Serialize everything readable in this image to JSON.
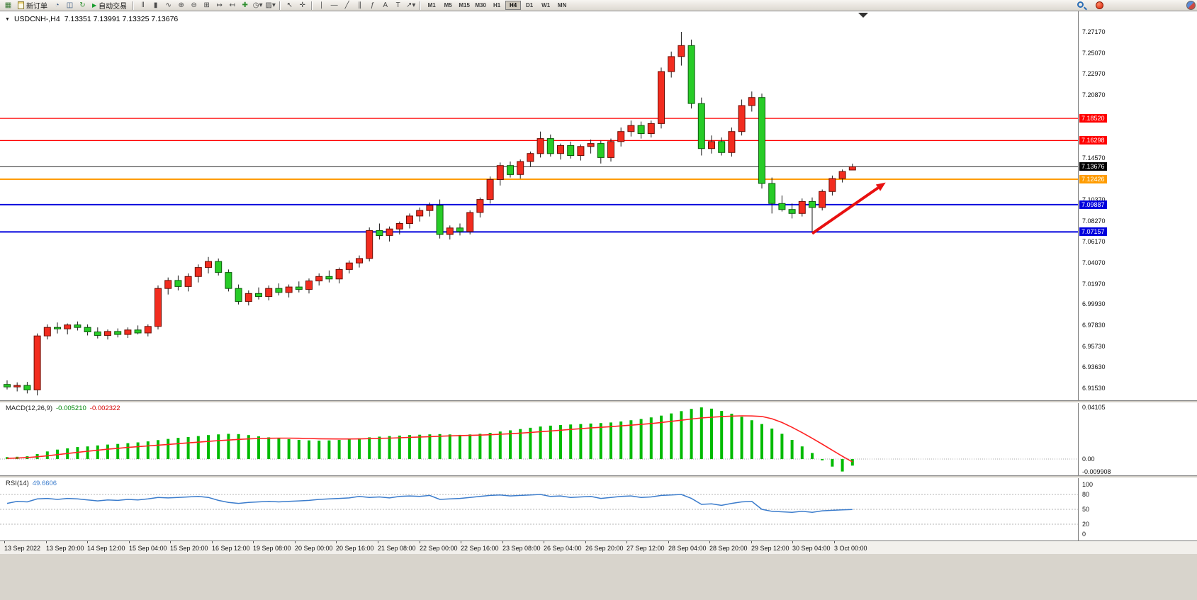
{
  "toolbar": {
    "new_order_label": "新订单",
    "autotrading_label": "自动交易",
    "autotrading_glyph": "▶",
    "icon_groups": {
      "g1": [
        {
          "name": "new-chart",
          "glyph": "▦",
          "color": "#3a7a34"
        }
      ],
      "g2": [
        {
          "name": "compass",
          "glyph": "◔",
          "color": "#31527d"
        },
        {
          "name": "market-watch",
          "glyph": "◫",
          "color": "#31527d"
        },
        {
          "name": "refresh-charts",
          "glyph": "↻",
          "color": "#2f8f2f"
        }
      ],
      "g3": [
        {
          "name": "bar-chart",
          "glyph": "ǁ"
        },
        {
          "name": "candlestick-chart",
          "glyph": "▮"
        },
        {
          "name": "line-chart",
          "glyph": "∿"
        },
        {
          "name": "zoom-in",
          "glyph": "⊕"
        },
        {
          "name": "zoom-out",
          "glyph": "⊖"
        },
        {
          "name": "tile-windows",
          "glyph": "⊞"
        },
        {
          "name": "auto-scroll",
          "glyph": "↦"
        },
        {
          "name": "chart-shift",
          "glyph": "↤"
        },
        {
          "name": "indicators",
          "glyph": "✚",
          "color": "#2f8f2f"
        },
        {
          "name": "periods-dropdown",
          "glyph": "◷▾"
        },
        {
          "name": "templates-dropdown",
          "glyph": "▨▾"
        }
      ],
      "g4": [
        {
          "name": "cursor",
          "glyph": "↖"
        },
        {
          "name": "crosshair",
          "glyph": "✛"
        }
      ],
      "g5": [
        {
          "name": "vertical-line",
          "glyph": "∣"
        },
        {
          "name": "horizontal-line",
          "glyph": "―"
        },
        {
          "name": "trendline",
          "glyph": "╱"
        },
        {
          "name": "equidistant-channel",
          "glyph": "∥"
        },
        {
          "name": "fibonacci",
          "glyph": "ƒ"
        },
        {
          "name": "text",
          "glyph": "A"
        },
        {
          "name": "text-label",
          "glyph": "T"
        },
        {
          "name": "arrows-dropdown",
          "glyph": "↗▾"
        }
      ]
    },
    "timeframes": [
      "M1",
      "M5",
      "M15",
      "M30",
      "H1",
      "H4",
      "D1",
      "W1",
      "MN"
    ],
    "active_timeframe": "H4"
  },
  "chart_header": {
    "menu_glyph": "▼",
    "symbol_period": "USDCNH-,H4",
    "quotes": "7.13351 7.13991 7.13325 7.13676"
  },
  "chart_data": {
    "type": "candlestick",
    "symbol": "USDCNH-",
    "timeframe": "H4",
    "quote": {
      "open": "7.13351",
      "high": "7.13991",
      "low": "7.13325",
      "close": "7.13676"
    },
    "price_axis": {
      "ticks": [
        "7.27170",
        "7.25070",
        "7.22970",
        "7.20870",
        "7.14570",
        "7.10370",
        "7.08270",
        "7.06170",
        "7.04070",
        "7.01970",
        "6.99930",
        "6.97830",
        "6.95730",
        "6.93630",
        "6.91530"
      ]
    },
    "hlines": [
      {
        "price": 7.1852,
        "label": "7.18520",
        "color": "#ff0000",
        "width": 1.2
      },
      {
        "price": 7.16298,
        "label": "7.16298",
        "color": "#ff0000",
        "width": 1.2
      },
      {
        "price": 7.13676,
        "label": "7.13676",
        "color": "#2b2b2b",
        "width": 1
      },
      {
        "price": 7.12426,
        "label": "7.12426",
        "color": "#ff9c00",
        "width": 2
      },
      {
        "price": 7.09887,
        "label": "7.09887",
        "color": "#0000dd",
        "width": 2
      },
      {
        "price": 7.07157,
        "label": "7.07157",
        "color": "#0000dd",
        "width": 2
      }
    ],
    "x_labels": [
      "13 Sep 2022",
      "13 Sep 20:00",
      "14 Sep 12:00",
      "15 Sep 04:00",
      "15 Sep 20:00",
      "16 Sep 12:00",
      "19 Sep 08:00",
      "20 Sep 00:00",
      "20 Sep 16:00",
      "21 Sep 08:00",
      "22 Sep 00:00",
      "22 Sep 16:00",
      "23 Sep 08:00",
      "26 Sep 04:00",
      "26 Sep 20:00",
      "27 Sep 12:00",
      "28 Sep 04:00",
      "28 Sep 20:00",
      "29 Sep 12:00",
      "30 Sep 04:00",
      "3 Oct 00:00"
    ],
    "candles": [
      [
        6.919,
        6.923,
        6.914,
        6.9165
      ],
      [
        6.9165,
        6.921,
        6.912,
        6.918
      ],
      [
        6.918,
        6.9215,
        6.91,
        6.9135
      ],
      [
        6.9135,
        6.97,
        6.908,
        6.9675
      ],
      [
        6.9675,
        6.979,
        6.964,
        6.976
      ],
      [
        6.976,
        6.981,
        6.97,
        6.9745
      ],
      [
        6.9745,
        6.98,
        6.969,
        6.9785
      ],
      [
        6.9785,
        6.982,
        6.973,
        6.976
      ],
      [
        6.976,
        6.979,
        6.968,
        6.9715
      ],
      [
        6.9715,
        6.976,
        6.965,
        6.968
      ],
      [
        6.968,
        6.974,
        6.964,
        6.972
      ],
      [
        6.972,
        6.975,
        6.966,
        6.969
      ],
      [
        6.969,
        6.976,
        6.9655,
        6.9735
      ],
      [
        6.9735,
        6.978,
        6.969,
        6.9705
      ],
      [
        6.9705,
        6.979,
        6.967,
        6.977
      ],
      [
        6.977,
        7.018,
        6.974,
        7.015
      ],
      [
        7.015,
        7.026,
        7.009,
        7.023
      ],
      [
        7.023,
        7.028,
        7.013,
        7.017
      ],
      [
        7.017,
        7.03,
        7.012,
        7.027
      ],
      [
        7.027,
        7.039,
        7.021,
        7.036
      ],
      [
        7.036,
        7.0465,
        7.03,
        7.042
      ],
      [
        7.042,
        7.045,
        7.028,
        7.031
      ],
      [
        7.031,
        7.034,
        7.012,
        7.015
      ],
      [
        7.015,
        7.019,
        6.999,
        7.002
      ],
      [
        7.002,
        7.013,
        6.998,
        7.01
      ],
      [
        7.01,
        7.016,
        7.004,
        7.007
      ],
      [
        7.007,
        7.018,
        7.003,
        7.015
      ],
      [
        7.015,
        7.02,
        7.008,
        7.011
      ],
      [
        7.011,
        7.019,
        7.006,
        7.0165
      ],
      [
        7.0165,
        7.022,
        7.011,
        7.014
      ],
      [
        7.014,
        7.025,
        7.01,
        7.0225
      ],
      [
        7.0225,
        7.03,
        7.018,
        7.027
      ],
      [
        7.027,
        7.033,
        7.021,
        7.0245
      ],
      [
        7.0245,
        7.036,
        7.02,
        7.034
      ],
      [
        7.034,
        7.043,
        7.03,
        7.0405
      ],
      [
        7.0405,
        7.048,
        7.036,
        7.045
      ],
      [
        7.045,
        7.076,
        7.042,
        7.073
      ],
      [
        7.073,
        7.08,
        7.064,
        7.068
      ],
      [
        7.068,
        7.077,
        7.062,
        7.0745
      ],
      [
        7.0745,
        7.082,
        7.069,
        7.08
      ],
      [
        7.08,
        7.09,
        7.075,
        7.0875
      ],
      [
        7.0875,
        7.096,
        7.082,
        7.093
      ],
      [
        7.093,
        7.101,
        7.087,
        7.098
      ],
      [
        7.098,
        7.104,
        7.065,
        7.069
      ],
      [
        7.069,
        7.078,
        7.064,
        7.0755
      ],
      [
        7.0755,
        7.08,
        7.068,
        7.072
      ],
      [
        7.072,
        7.093,
        7.069,
        7.091
      ],
      [
        7.091,
        7.106,
        7.086,
        7.104
      ],
      [
        7.104,
        7.127,
        7.1,
        7.124
      ],
      [
        7.124,
        7.141,
        7.118,
        7.138
      ],
      [
        7.138,
        7.142,
        7.126,
        7.129
      ],
      [
        7.129,
        7.144,
        7.125,
        7.142
      ],
      [
        7.142,
        7.152,
        7.137,
        7.15
      ],
      [
        7.15,
        7.172,
        7.146,
        7.165
      ],
      [
        7.165,
        7.169,
        7.147,
        7.15
      ],
      [
        7.15,
        7.16,
        7.144,
        7.158
      ],
      [
        7.158,
        7.162,
        7.145,
        7.148
      ],
      [
        7.148,
        7.159,
        7.143,
        7.157
      ],
      [
        7.157,
        7.164,
        7.15,
        7.16
      ],
      [
        7.16,
        7.163,
        7.14,
        7.146
      ],
      [
        7.146,
        7.165,
        7.142,
        7.162
      ],
      [
        7.162,
        7.176,
        7.157,
        7.172
      ],
      [
        7.172,
        7.183,
        7.167,
        7.178
      ],
      [
        7.178,
        7.182,
        7.165,
        7.17
      ],
      [
        7.17,
        7.183,
        7.166,
        7.18
      ],
      [
        7.18,
        7.236,
        7.175,
        7.232
      ],
      [
        7.232,
        7.252,
        7.226,
        7.247
      ],
      [
        7.247,
        7.2717,
        7.238,
        7.258
      ],
      [
        7.258,
        7.264,
        7.195,
        7.2
      ],
      [
        7.2,
        7.206,
        7.148,
        7.155
      ],
      [
        7.155,
        7.168,
        7.15,
        7.162
      ],
      [
        7.162,
        7.166,
        7.148,
        7.151
      ],
      [
        7.151,
        7.176,
        7.147,
        7.172
      ],
      [
        7.172,
        7.204,
        7.168,
        7.198
      ],
      [
        7.198,
        7.212,
        7.192,
        7.206
      ],
      [
        7.206,
        7.21,
        7.115,
        7.12
      ],
      [
        7.12,
        7.126,
        7.09,
        7.1
      ],
      [
        7.1,
        7.108,
        7.092,
        7.094
      ],
      [
        7.094,
        7.1,
        7.085,
        7.09
      ],
      [
        7.09,
        7.105,
        7.087,
        7.102
      ],
      [
        7.102,
        7.106,
        7.072,
        7.096
      ],
      [
        7.096,
        7.114,
        7.093,
        7.112
      ],
      [
        7.112,
        7.128,
        7.108,
        7.125
      ],
      [
        7.125,
        7.134,
        7.121,
        7.132
      ],
      [
        7.13351,
        7.13991,
        7.13325,
        7.13676
      ]
    ],
    "annotation_arrow": {
      "from_index": 80,
      "from_price": 7.07,
      "to_index": 87.3,
      "to_price": 7.121,
      "color": "#e81010"
    },
    "macd": {
      "label": "MACD(12,26,9)",
      "value_main": "-0.005210",
      "value_signal": "-0.002322",
      "axis_labels": [
        {
          "text": "0.04105",
          "value": 0.04105
        },
        {
          "text": "0.00",
          "value": 0
        },
        {
          "text": "-0.009908",
          "value": -0.0099
        }
      ],
      "histogram": [
        0.0015,
        0.0018,
        0.0022,
        0.004,
        0.006,
        0.0075,
        0.0085,
        0.0095,
        0.01,
        0.0108,
        0.0115,
        0.012,
        0.0126,
        0.0132,
        0.014,
        0.015,
        0.016,
        0.0168,
        0.0175,
        0.0182,
        0.019,
        0.0196,
        0.02,
        0.0198,
        0.019,
        0.018,
        0.0172,
        0.0165,
        0.0158,
        0.0152,
        0.0148,
        0.0146,
        0.0148,
        0.0152,
        0.0158,
        0.0165,
        0.0172,
        0.0178,
        0.0182,
        0.0186,
        0.019,
        0.0193,
        0.0196,
        0.0198,
        0.0195,
        0.0192,
        0.0195,
        0.02,
        0.0208,
        0.0218,
        0.0228,
        0.0238,
        0.0248,
        0.0258,
        0.0265,
        0.027,
        0.0274,
        0.0278,
        0.0282,
        0.0285,
        0.029,
        0.0298,
        0.0308,
        0.0318,
        0.033,
        0.0345,
        0.0362,
        0.038,
        0.0398,
        0.041,
        0.04,
        0.0382,
        0.036,
        0.0335,
        0.0308,
        0.0278,
        0.0242,
        0.02,
        0.0152,
        0.01,
        0.0048,
        -0.001,
        -0.006,
        -0.0099,
        -0.00521
      ],
      "signal": [
        0.0005,
        0.0008,
        0.0012,
        0.0018,
        0.0026,
        0.0035,
        0.0044,
        0.0053,
        0.0062,
        0.007,
        0.0078,
        0.0085,
        0.0092,
        0.0098,
        0.0104,
        0.011,
        0.0116,
        0.0122,
        0.0128,
        0.0134,
        0.014,
        0.0146,
        0.0151,
        0.0156,
        0.016,
        0.0163,
        0.0165,
        0.0166,
        0.0166,
        0.0165,
        0.0163,
        0.0161,
        0.016,
        0.0159,
        0.0159,
        0.016,
        0.0162,
        0.0164,
        0.0166,
        0.0169,
        0.0172,
        0.0175,
        0.0178,
        0.0181,
        0.0184,
        0.0186,
        0.0188,
        0.019,
        0.0193,
        0.0197,
        0.0201,
        0.0206,
        0.0211,
        0.0217,
        0.0223,
        0.0229,
        0.0235,
        0.0241,
        0.0247,
        0.0252,
        0.0257,
        0.0263,
        0.0269,
        0.0275,
        0.0282,
        0.029,
        0.0299,
        0.0308,
        0.0318,
        0.0326,
        0.0332,
        0.0337,
        0.0341,
        0.0343,
        0.0342,
        0.0338,
        0.032,
        0.029,
        0.0252,
        0.021,
        0.0165,
        0.0118,
        0.007,
        0.0022,
        -0.0023
      ]
    },
    "rsi": {
      "label": "RSI(14)",
      "value": "49.6606",
      "axis_labels": [
        {
          "text": "100",
          "value": 100
        },
        {
          "text": "80",
          "value": 80
        },
        {
          "text": "50",
          "value": 50
        },
        {
          "text": "20",
          "value": 20
        },
        {
          "text": "0",
          "value": 0
        }
      ],
      "dashed_levels": [
        80,
        50,
        20
      ],
      "values": [
        62,
        66,
        65,
        71,
        72,
        70,
        72,
        71,
        69,
        67,
        69,
        68,
        70,
        69,
        71,
        74,
        73,
        74,
        75,
        76,
        74,
        68,
        64,
        62,
        64,
        65,
        66,
        65,
        66,
        67,
        68,
        70,
        71,
        72,
        73,
        76,
        74,
        75,
        73,
        76,
        77,
        76,
        78,
        70,
        71,
        72,
        74,
        76,
        78,
        79,
        77,
        78,
        79,
        80,
        76,
        77,
        74,
        75,
        76,
        72,
        74,
        76,
        77,
        74,
        75,
        78,
        79,
        80,
        72,
        60,
        61,
        58,
        62,
        65,
        66,
        50,
        46,
        45,
        44,
        46,
        44,
        47,
        48,
        49,
        49.66
      ]
    },
    "colors": {
      "bull_body": "#f22c1f",
      "bull_border": "#6b0e05",
      "bear_body": "#27cc27",
      "bear_border": "#0b5c0b",
      "wick": "#1a1a1a",
      "macd_histogram": "#00bb00",
      "macd_signal": "#ff2222",
      "rsi_line": "#3b7ccc"
    }
  }
}
